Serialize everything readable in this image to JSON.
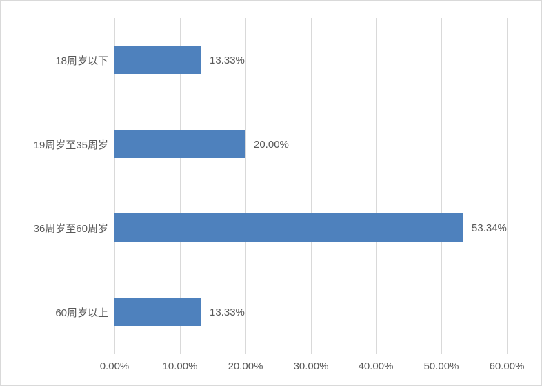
{
  "chart": {
    "frame": {
      "background": "#FFFFFF",
      "border_color": "#D9D9D9"
    }
  },
  "chart_data": {
    "type": "bar",
    "orientation": "horizontal",
    "title": "",
    "xlabel": "",
    "ylabel": "",
    "categories": [
      "18周岁以下",
      "19周岁至35周岁",
      "36周岁至60周岁",
      "60周岁以上"
    ],
    "values": [
      13.33,
      20.0,
      53.34,
      13.33
    ],
    "value_labels": [
      "13.33%",
      "20.00%",
      "53.34%",
      "13.33%"
    ],
    "x_axis": {
      "min": 0,
      "max": 60,
      "tick_values": [
        0,
        10,
        20,
        30,
        40,
        50,
        60
      ],
      "tick_labels": [
        "0.00%",
        "10.00%",
        "20.00%",
        "30.00%",
        "40.00%",
        "50.00%",
        "60.00%"
      ]
    },
    "grid": true,
    "legend": false,
    "colors": {
      "bar": "#4E81BD",
      "gridline": "#D9D9D9",
      "axis_text": "#595959",
      "label_text": "#595959",
      "border": "#D9D9D9",
      "background": "#FFFFFF"
    }
  }
}
